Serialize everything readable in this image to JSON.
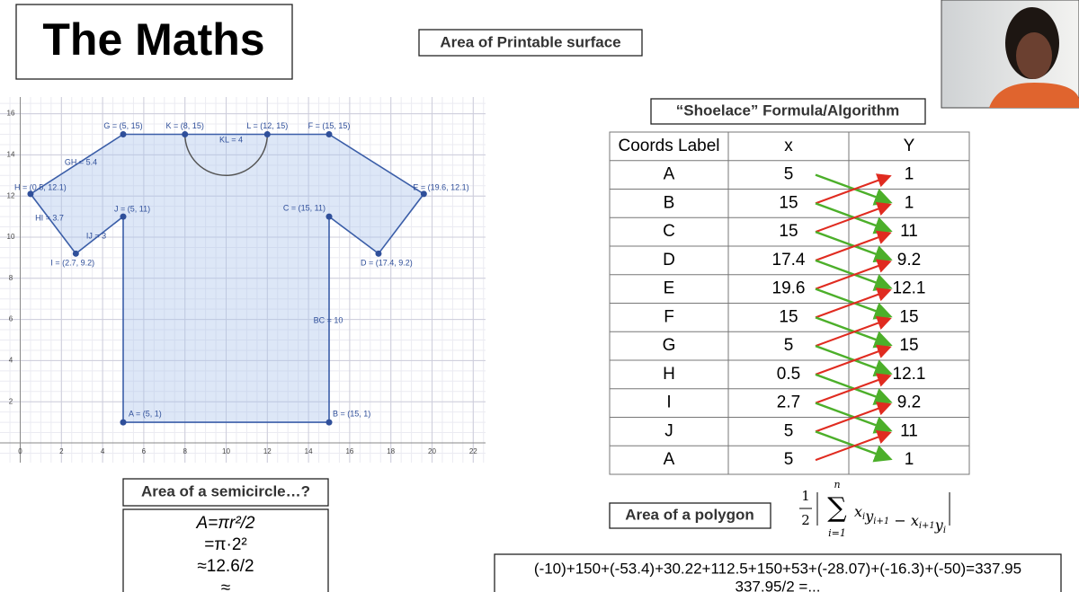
{
  "title": "The Maths",
  "subtitle": "Area of Printable surface",
  "graph": {
    "xticks": [
      0,
      2,
      4,
      6,
      8,
      10,
      12,
      14,
      16,
      18,
      20,
      22
    ],
    "yticks": [
      2,
      4,
      6,
      8,
      10,
      12,
      14,
      16
    ],
    "points": [
      {
        "label": "A = (5, 1)",
        "x": 5,
        "y": 1
      },
      {
        "label": "B = (15, 1)",
        "x": 15,
        "y": 1
      },
      {
        "label": "C = (15, 11)",
        "x": 15,
        "y": 11
      },
      {
        "label": "D = (17.4, 9.2)",
        "x": 17.4,
        "y": 9.2
      },
      {
        "label": "E = (19.6, 12.1)",
        "x": 19.6,
        "y": 12.1
      },
      {
        "label": "F = (15, 15)",
        "x": 15,
        "y": 15
      },
      {
        "label": "L = (12, 15)",
        "x": 12,
        "y": 15
      },
      {
        "label": "K = (8, 15)",
        "x": 8,
        "y": 15
      },
      {
        "label": "G = (5, 15)",
        "x": 5,
        "y": 15
      },
      {
        "label": "H = (0.5, 12.1)",
        "x": 0.5,
        "y": 12.1
      },
      {
        "label": "I = (2.7, 9.2)",
        "x": 2.7,
        "y": 9.2
      },
      {
        "label": "J = (5, 11)",
        "x": 5,
        "y": 11
      }
    ],
    "segments": [
      "GH = 5.4",
      "HI = 3.7",
      "IJ = 3",
      "BC = 10",
      "KL = 4"
    ]
  },
  "shoelace": {
    "heading": "“Shoelace” Formula/Algorithm",
    "columns": [
      "Coords Label",
      "x",
      "Y"
    ],
    "rows": [
      [
        "A",
        "5",
        "1"
      ],
      [
        "B",
        "15",
        "1"
      ],
      [
        "C",
        "15",
        "11"
      ],
      [
        "D",
        "17.4",
        "9.2"
      ],
      [
        "E",
        "19.6",
        "12.1"
      ],
      [
        "F",
        "15",
        "15"
      ],
      [
        "G",
        "5",
        "15"
      ],
      [
        "H",
        "0.5",
        "12.1"
      ],
      [
        "I",
        "2.7",
        "9.2"
      ],
      [
        "J",
        "5",
        "11"
      ],
      [
        "A",
        "5",
        "1"
      ]
    ]
  },
  "semicircle": {
    "heading": "Area of a semicircle…?",
    "lines": [
      "A=πr²/2",
      "=π·2²",
      "≈12.6/2",
      "≈"
    ]
  },
  "polygon": {
    "heading": "Area of a polygon",
    "formula": {
      "numerator": "1",
      "denominator": "2",
      "upper": "n",
      "lower": "i=1",
      "sigma": "∑",
      "terms": [
        {
          "v": "x",
          "sub": "i"
        },
        {
          "v": "y",
          "sub": "i+1"
        },
        {
          "v": " − "
        },
        {
          "v": "x",
          "sub": "i+1"
        },
        {
          "v": "y",
          "sub": "i"
        }
      ]
    },
    "working": [
      "(-10)+150+(-53.4)+30.22+112.5+150+53+(-28.07)+(-16.3)+(-50)=337.95",
      "337.95/2 =..."
    ]
  }
}
